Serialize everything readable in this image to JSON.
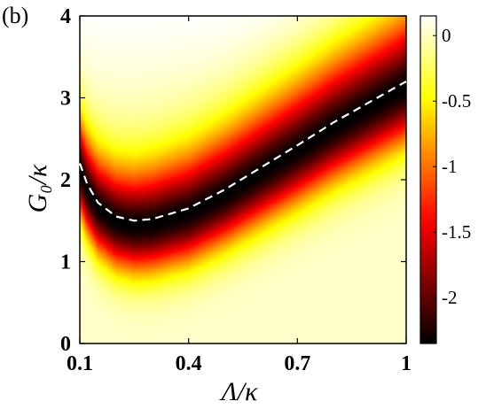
{
  "panel_label": "(b)",
  "chart_data": {
    "type": "heatmap",
    "xlabel": "Λ/κ",
    "ylabel": "G₀/κ",
    "xlim": [
      0.1,
      1.0
    ],
    "ylim": [
      0,
      4
    ],
    "x_ticks": [
      0.1,
      0.4,
      0.7,
      1.0
    ],
    "x_tick_labels": [
      "0.1",
      "0.4",
      "0.7",
      "1"
    ],
    "y_ticks": [
      0,
      1,
      2,
      3,
      4
    ],
    "y_tick_labels": [
      "0",
      "1",
      "2",
      "3",
      "4"
    ],
    "colormap": "hot",
    "colorbar": {
      "range": [
        -2.35,
        0.15
      ],
      "ticks": [
        0,
        -0.5,
        -1,
        -1.5,
        -2
      ],
      "tick_labels": [
        "0",
        "-0.5",
        "-1",
        "-1.5",
        "-2"
      ]
    },
    "optimal_curve": {
      "style": "dashed",
      "color": "#ffffff",
      "x": [
        0.1,
        0.12,
        0.15,
        0.2,
        0.25,
        0.3,
        0.4,
        0.5,
        0.6,
        0.7,
        0.8,
        0.9,
        1.0
      ],
      "y": [
        2.2,
        1.95,
        1.72,
        1.55,
        1.5,
        1.52,
        1.65,
        1.88,
        2.15,
        2.42,
        2.7,
        2.95,
        3.2
      ]
    },
    "heatmap_model": {
      "description_free": true,
      "minimum_value": -2.35,
      "far_below_value": 0.0,
      "far_above_value": 0.15,
      "below_width": 0.55,
      "above_width": 1.0
    }
  }
}
